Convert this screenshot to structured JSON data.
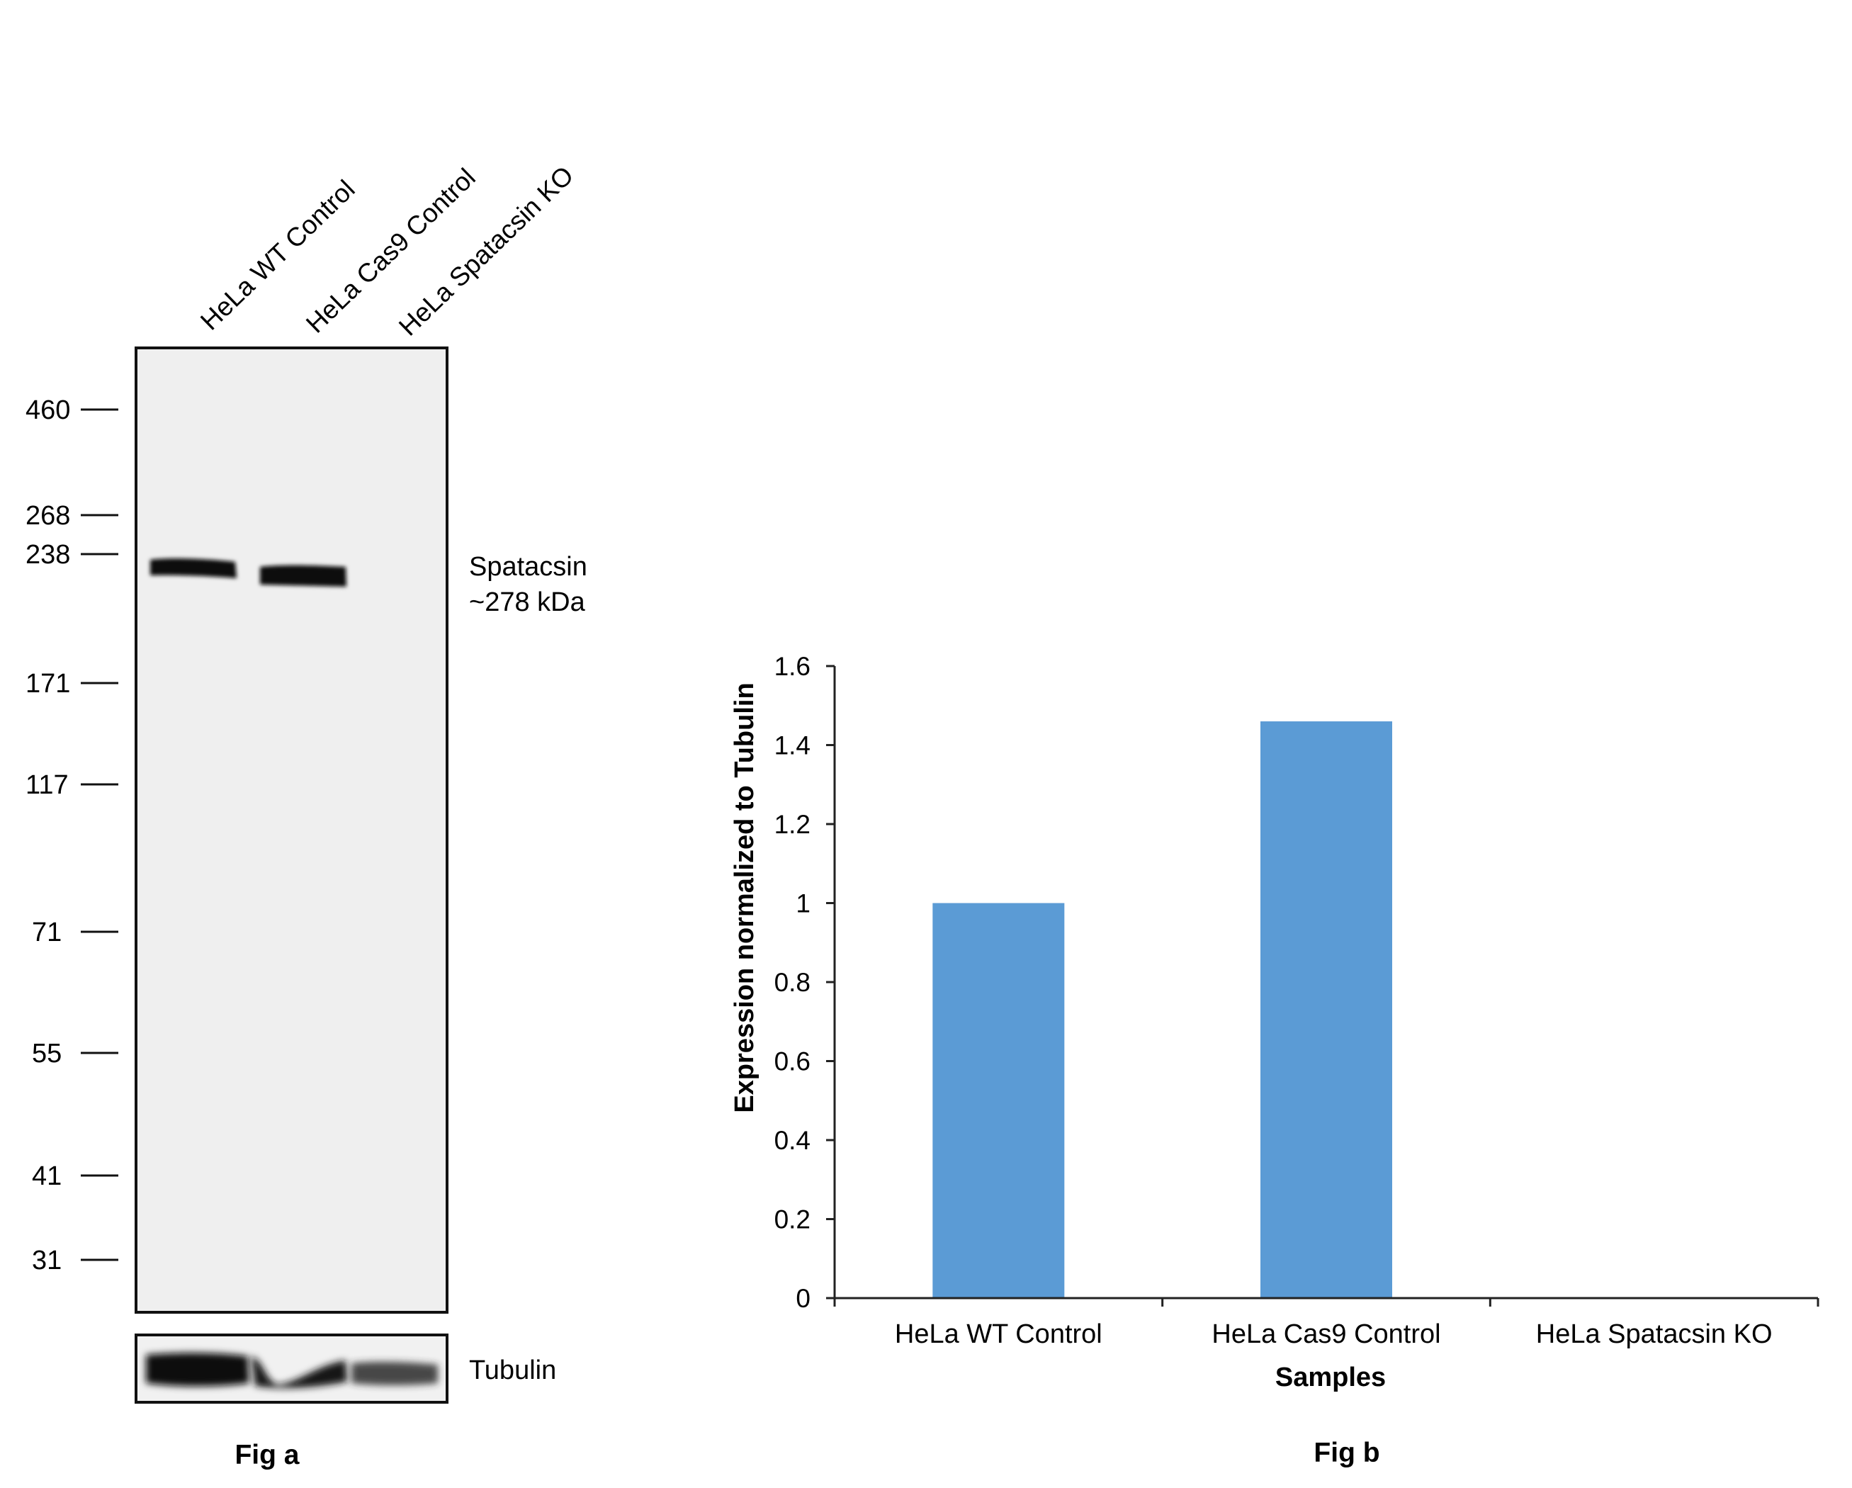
{
  "fig_a": {
    "caption": "Fig a",
    "lanes": [
      "HeLa WT Control",
      "HeLa Cas9 Control",
      "HeLa Spatacsin KO"
    ],
    "mw_markers": [
      "460",
      "268",
      "238",
      "171",
      "117",
      "71",
      "55",
      "41",
      "31"
    ],
    "band_label_line1": "Spatacsin",
    "band_label_line2": "~278 kDa",
    "loading_control_label": "Tubulin"
  },
  "fig_b": {
    "caption": "Fig b"
  },
  "chart_data": {
    "type": "bar",
    "categories": [
      "HeLa WT Control",
      "HeLa Cas9 Control",
      "HeLa Spatacsin KO"
    ],
    "values": [
      1.0,
      1.46,
      0.0
    ],
    "xlabel": "Samples",
    "ylabel": "Expression normalized to Tubulin",
    "ylim": [
      0,
      1.6
    ],
    "yticks": [
      "0",
      "0.2",
      "0.4",
      "0.6",
      "0.8",
      "1",
      "1.2",
      "1.4",
      "1.6"
    ],
    "bar_color": "#5b9bd5",
    "grid": false,
    "legend": "none"
  }
}
